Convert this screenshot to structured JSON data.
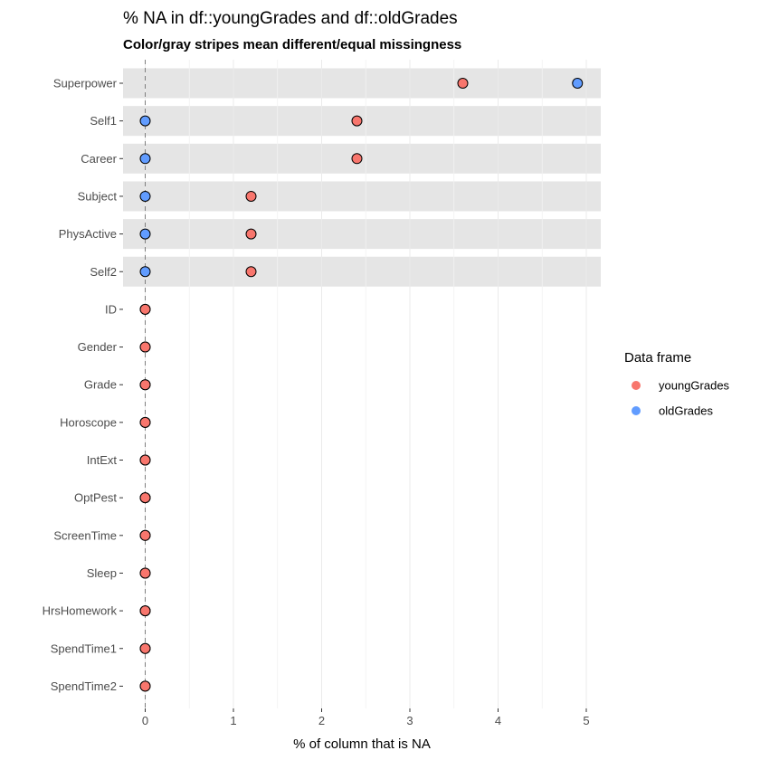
{
  "chart_data": {
    "type": "scatter",
    "title": "% NA in df::youngGrades and df::oldGrades",
    "subtitle": "Color/gray stripes mean different/equal missingness",
    "xlabel": "% of column that is NA",
    "ylabel": "",
    "xlim": [
      -0.15,
      5.15
    ],
    "x_ticks": [
      0,
      1,
      2,
      3,
      4,
      5
    ],
    "grid": true,
    "reference_line_x": 0,
    "legend": {
      "title": "Data frame",
      "position": "right"
    },
    "categories": [
      "Superpower",
      "Self1",
      "Career",
      "Subject",
      "PhysActive",
      "Self2",
      "ID",
      "Gender",
      "Grade",
      "Horoscope",
      "IntExt",
      "OptPest",
      "ScreenTime",
      "Sleep",
      "HrsHomework",
      "SpendTime1",
      "SpendTime2"
    ],
    "stripes": [
      true,
      true,
      true,
      true,
      true,
      true,
      false,
      false,
      false,
      false,
      false,
      false,
      false,
      false,
      false,
      false,
      false
    ],
    "series": [
      {
        "name": "youngGrades",
        "color": "#f8766d",
        "values": [
          3.6,
          2.4,
          2.4,
          1.2,
          1.2,
          1.2,
          0,
          0,
          0,
          0,
          0,
          0,
          0,
          0,
          0,
          0,
          0
        ]
      },
      {
        "name": "oldGrades",
        "color": "#619cff",
        "values": [
          4.9,
          0,
          0,
          0,
          0,
          0,
          0,
          0,
          0,
          0,
          0,
          0,
          0,
          0,
          0,
          0,
          0
        ]
      }
    ]
  }
}
